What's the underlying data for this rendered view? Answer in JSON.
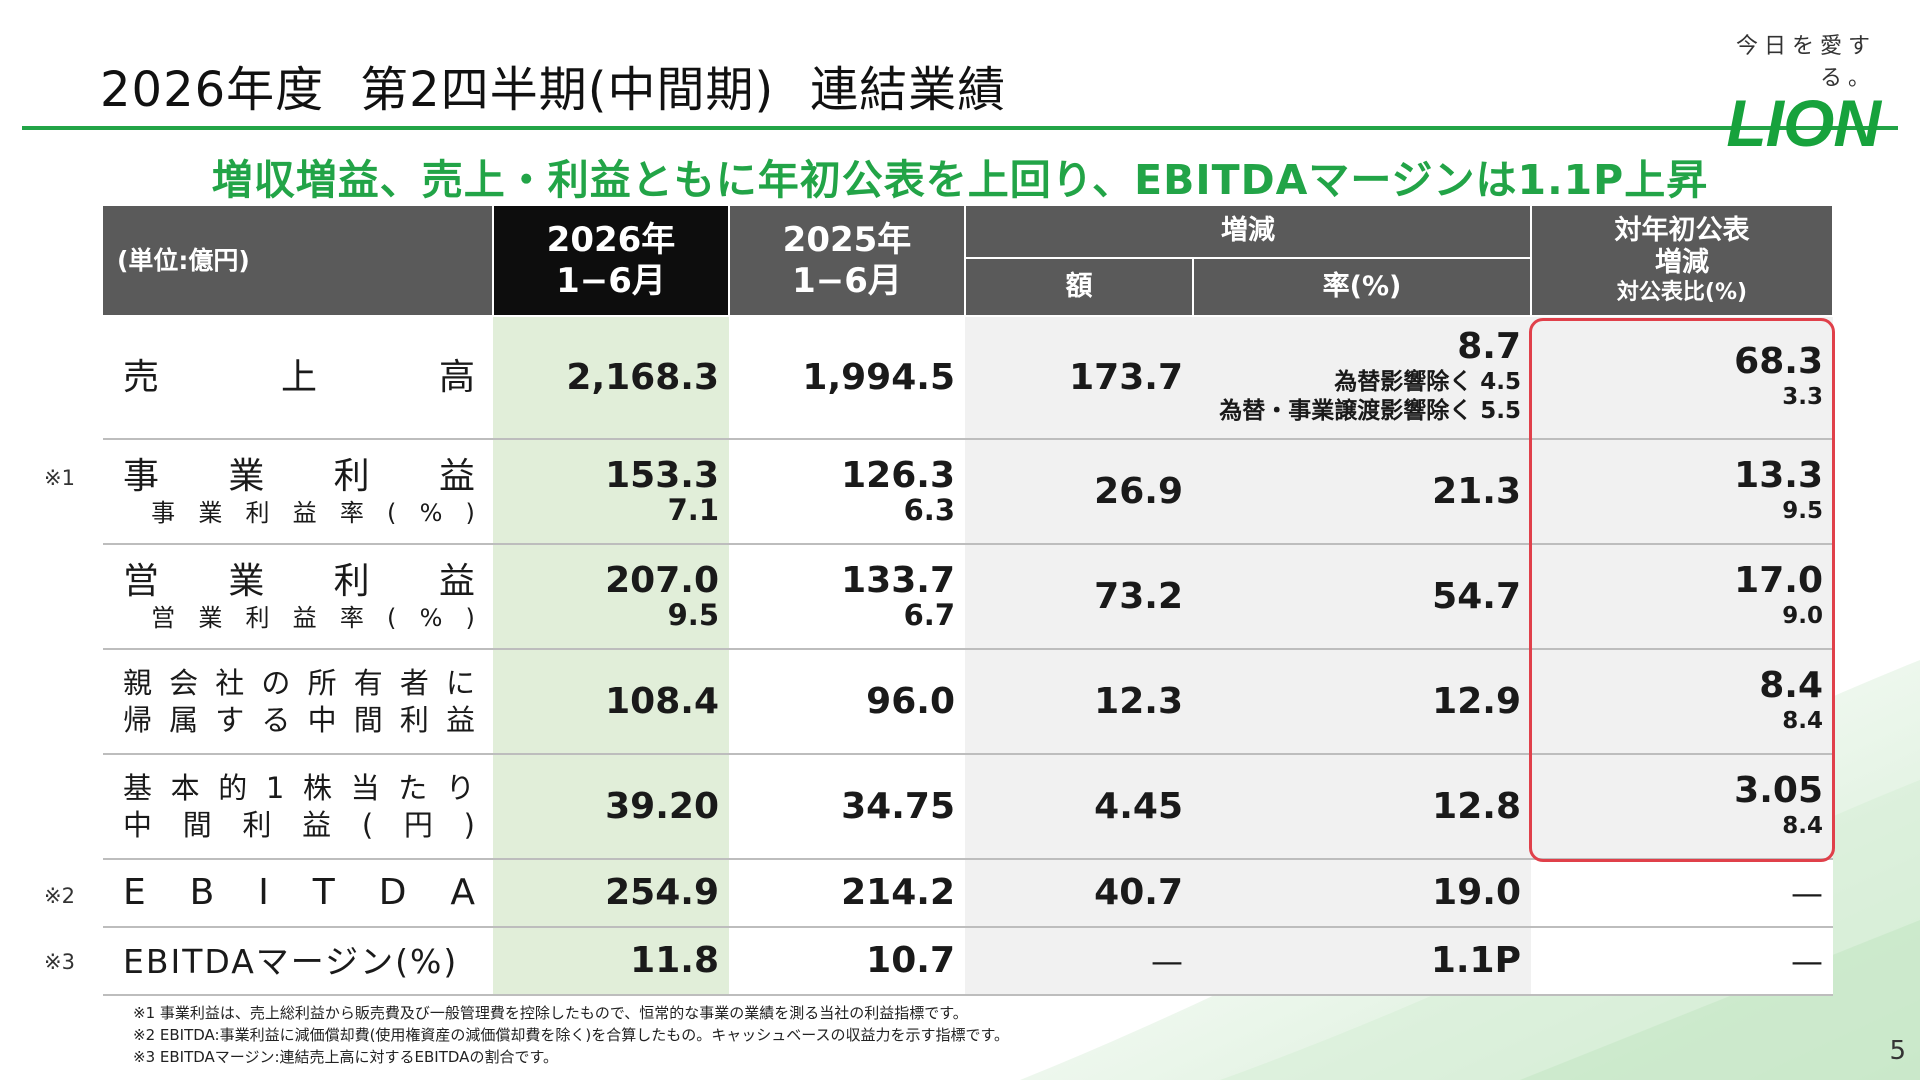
{
  "header": {
    "title_main": "2026年度",
    "title_sub": "第2四半期(中間期)",
    "title_tail": "連結業績",
    "headline": "増収増益、売上・利益ともに年初公表を上回り、EBITDAマージンは1.1P上昇"
  },
  "logo": {
    "tagline": "今日を愛する。",
    "word": "LION"
  },
  "colors": {
    "brand_green": "#22a447",
    "highlight_red": "#e0404a",
    "header_gray": "#5a5a5a",
    "current_year_bg": "#e1eed9"
  },
  "table": {
    "unit": "(単位:億円)",
    "col_2026_l1": "2026年",
    "col_2026_l2": "1−6月",
    "col_2025_l1": "2025年",
    "col_2025_l2": "1−6月",
    "col_diff": "増減",
    "col_diff_amount": "額",
    "col_diff_rate": "率(%)",
    "col_vs_plan_l1": "対年初公表",
    "col_vs_plan_l2": "増減",
    "col_vs_plan_l3": "対公表比(%)",
    "rows": {
      "sales": {
        "label": "売上高",
        "v2026": "2,168.3",
        "v2025": "1,994.5",
        "diff": "173.7",
        "rate": "8.7",
        "rate_note1_label": "為替影響除く",
        "rate_note1_value": "4.5",
        "rate_note2_label": "為替・事業譲渡影響除く",
        "rate_note2_value": "5.5",
        "plan": "68.3",
        "plan_ratio": "3.3"
      },
      "business_profit": {
        "marker": "※1",
        "label": "事業利益",
        "sublabel": "事業利益率(%)",
        "v2026": "153.3",
        "v2026_sub": "7.1",
        "v2025": "126.3",
        "v2025_sub": "6.3",
        "diff": "26.9",
        "rate": "21.3",
        "plan": "13.3",
        "plan_ratio": "9.5"
      },
      "operating_profit": {
        "label": "営業利益",
        "sublabel": "営業利益率(%)",
        "v2026": "207.0",
        "v2026_sub": "9.5",
        "v2025": "133.7",
        "v2025_sub": "6.7",
        "diff": "73.2",
        "rate": "54.7",
        "plan": "17.0",
        "plan_ratio": "9.0"
      },
      "net_income": {
        "label_l1": "親会社の所有者に",
        "label_l2": "帰属する中間利益",
        "v2026": "108.4",
        "v2025": "96.0",
        "diff": "12.3",
        "rate": "12.9",
        "plan": "8.4",
        "plan_ratio": "8.4"
      },
      "eps": {
        "label_l1": "基本的1株当たり",
        "label_l2": "中間利益(円)",
        "v2026": "39.20",
        "v2025": "34.75",
        "diff": "4.45",
        "rate": "12.8",
        "plan": "3.05",
        "plan_ratio": "8.4"
      },
      "ebitda": {
        "marker": "※2",
        "label": "EBITDA",
        "v2026": "254.9",
        "v2025": "214.2",
        "diff": "40.7",
        "rate": "19.0",
        "plan": "—"
      },
      "ebitda_margin": {
        "marker": "※3",
        "label": "EBITDAマージン(%)",
        "v2026": "11.8",
        "v2025": "10.7",
        "diff": "—",
        "rate": "1.1P",
        "plan": "—"
      }
    }
  },
  "footnotes": [
    "※1 事業利益は、売上総利益から販売費及び一般管理費を控除したもので、恒常的な事業の業績を測る当社の利益指標です。",
    "※2 EBITDA:事業利益に減価償却費(使用権資産の減価償却費を除く)を合算したもの。キャッシュベースの収益力を示す指標です。",
    "※3 EBITDAマージン:連結売上高に対するEBITDAの割合です。"
  ],
  "page_number": "5"
}
